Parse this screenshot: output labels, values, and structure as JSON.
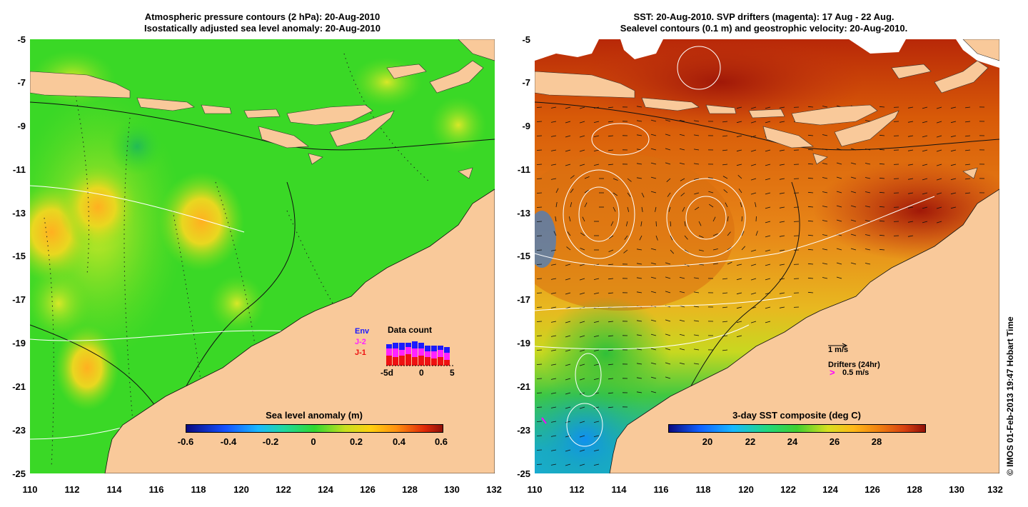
{
  "left_panel": {
    "title_line1": "Atmospheric pressure contours (2 hPa): 20-Aug-2010",
    "title_line2": "Isostatically adjusted sea level anomaly: 20-Aug-2010",
    "y_ticks": [
      "-5",
      "-7",
      "-9",
      "-11",
      "-13",
      "-15",
      "-17",
      "-19",
      "-21",
      "-23",
      "-25"
    ],
    "x_ticks": [
      "110",
      "112",
      "114",
      "116",
      "118",
      "120",
      "122",
      "124",
      "126",
      "128",
      "130",
      "132"
    ],
    "colorbar_label": "Sea level anomaly (m)",
    "colorbar_ticks": [
      "-0.6",
      "-0.4",
      "-0.2",
      "0",
      "0.2",
      "0.4",
      "0.6"
    ],
    "inset": {
      "title": "Data count",
      "legend": [
        "Env",
        "J-2",
        "J-1"
      ],
      "legend_colors": [
        "#1a1aff",
        "#ff22ff",
        "#ee1111"
      ],
      "x_ticks": [
        "-5d",
        "0",
        "5"
      ]
    }
  },
  "right_panel": {
    "title_line1": "SST: 20-Aug-2010. SVP drifters (magenta): 17 Aug - 22 Aug.",
    "title_line2": "Sealevel contours (0.1 m) and geostrophic velocity: 20-Aug-2010.",
    "y_ticks": [
      "-5",
      "-7",
      "-9",
      "-11",
      "-13",
      "-15",
      "-17",
      "-19",
      "-21",
      "-23",
      "-25"
    ],
    "x_ticks": [
      "110",
      "112",
      "114",
      "116",
      "118",
      "120",
      "122",
      "124",
      "126",
      "128",
      "130",
      "132"
    ],
    "colorbar_label": "3-day SST composite (deg C)",
    "colorbar_ticks": [
      "20",
      "22",
      "24",
      "26",
      "28"
    ],
    "scale_label": "1 m/s",
    "drifters_label": "Drifters (24hr)",
    "drifters_scale": "0.5 m/s"
  },
  "copyright": "© IMOS 01-Feb-2013 19:47 Hobart Time",
  "colors": {
    "land": "#f9c99a",
    "sla_base": "#33dd22",
    "sst_base": "#e07a10",
    "magenta": "#ff00ff"
  }
}
